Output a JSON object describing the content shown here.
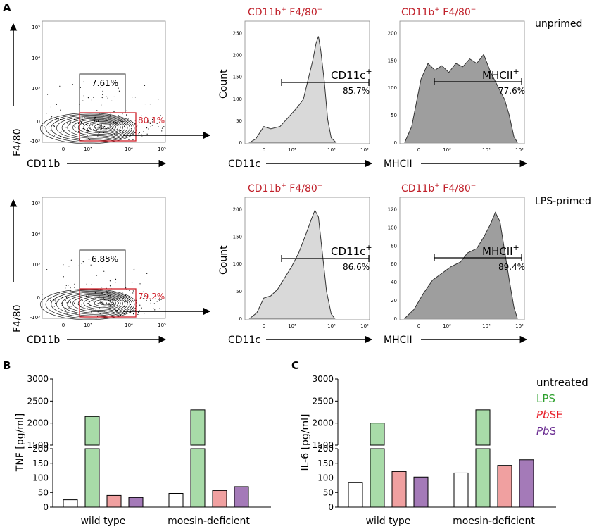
{
  "panel_labels": {
    "a": "A",
    "b": "B",
    "c": "C"
  },
  "rows": [
    {
      "condition": "unprimed",
      "dotplot": {
        "ylabel": "F4/80",
        "xlabel": "CD11b",
        "upper_gate_pct": "7.61%",
        "lower_gate_pct": "80.1%"
      },
      "hist_cd11c": {
        "title_main": "CD11b",
        "title_sup1": "+",
        "title_mid": " F4/80",
        "title_sup2": "−",
        "ylabel": "Count",
        "xlabel": "CD11c",
        "gate_name": "CD11c",
        "gate_sup": "+",
        "gate_pct": "85.7%",
        "y_ticks": [
          "0",
          "50",
          "100",
          "150",
          "200",
          "250"
        ]
      },
      "hist_mhcii": {
        "title_main": "CD11b",
        "title_sup1": "+",
        "title_mid": " F4/80",
        "title_sup2": "−",
        "xlabel": "MHCII",
        "gate_name": "MHCII",
        "gate_sup": "+",
        "gate_pct": "77.6%",
        "y_ticks": [
          "0",
          "50",
          "100",
          "150",
          "200"
        ]
      }
    },
    {
      "condition": "LPS-primed",
      "dotplot": {
        "ylabel": "F4/80",
        "xlabel": "CD11b",
        "upper_gate_pct": "6.85%",
        "lower_gate_pct": "79.2%"
      },
      "hist_cd11c": {
        "title_main": "CD11b",
        "title_sup1": "+",
        "title_mid": " F4/80",
        "title_sup2": "−",
        "ylabel": "Count",
        "xlabel": "CD11c",
        "gate_name": "CD11c",
        "gate_sup": "+",
        "gate_pct": "86.6%",
        "y_ticks": [
          "0",
          "50",
          "100",
          "150",
          "200"
        ]
      },
      "hist_mhcii": {
        "title_main": "CD11b",
        "title_sup1": "+",
        "title_mid": " F4/80",
        "title_sup2": "−",
        "xlabel": "MHCII",
        "gate_name": "MHCII",
        "gate_sup": "+",
        "gate_pct": "89.4%",
        "y_ticks": [
          "0",
          "20",
          "40",
          "60",
          "80",
          "100",
          "120"
        ]
      }
    }
  ],
  "flow_axis_ticks": {
    "dot_y": [
      "-10³",
      "0",
      "10³",
      "10⁴",
      "10⁵"
    ],
    "dot_x": [
      "0",
      "10³",
      "10⁴",
      "10⁵"
    ],
    "hist_x": [
      "0",
      "10³",
      "10⁴",
      "10⁵"
    ]
  },
  "legend": [
    {
      "prefix": "",
      "italic": "",
      "suffix": "untreated",
      "color": "#000000"
    },
    {
      "prefix": "",
      "italic": "",
      "suffix": "LPS",
      "color": "#2ca02c"
    },
    {
      "prefix": "",
      "italic": "Pb",
      "suffix": "SE",
      "color": "#e8202a"
    },
    {
      "prefix": "",
      "italic": "Pb",
      "suffix": "S",
      "color": "#6a2c91"
    }
  ],
  "chart_data": [
    {
      "type": "bar",
      "panel": "B",
      "title": "",
      "ylabel": "TNF [pg/ml]",
      "xlabel": "",
      "categories": [
        "wild type",
        "moesin-deficient"
      ],
      "series": [
        {
          "name": "untreated",
          "values": [
            25,
            47
          ],
          "color": "#ffffff"
        },
        {
          "name": "LPS",
          "values": [
            2150,
            2300
          ],
          "color": "#a8dba8"
        },
        {
          "name": "PbSE",
          "values": [
            40,
            57
          ],
          "color": "#f0a0a0"
        },
        {
          "name": "PbS",
          "values": [
            33,
            70
          ],
          "color": "#a47ab8"
        }
      ],
      "broken_axis": {
        "lower_range": [
          0,
          200
        ],
        "upper_range": [
          1500,
          3000
        ]
      },
      "lower_ticks": [
        "0",
        "50",
        "100",
        "150",
        "200"
      ],
      "upper_ticks": [
        "1500",
        "2000",
        "2500",
        "3000"
      ]
    },
    {
      "type": "bar",
      "panel": "C",
      "title": "",
      "ylabel": "IL-6 [pg/ml]",
      "xlabel": "",
      "categories": [
        "wild type",
        "moesin-deficient"
      ],
      "series": [
        {
          "name": "untreated",
          "values": [
            85,
            117
          ],
          "color": "#ffffff"
        },
        {
          "name": "LPS",
          "values": [
            2000,
            2300
          ],
          "color": "#a8dba8"
        },
        {
          "name": "PbSE",
          "values": [
            122,
            143
          ],
          "color": "#f0a0a0"
        },
        {
          "name": "PbS",
          "values": [
            103,
            162
          ],
          "color": "#a47ab8"
        }
      ],
      "broken_axis": {
        "lower_range": [
          0,
          200
        ],
        "upper_range": [
          1500,
          3000
        ]
      },
      "lower_ticks": [
        "0",
        "50",
        "100",
        "150",
        "200"
      ],
      "upper_ticks": [
        "1500",
        "2000",
        "2500",
        "3000"
      ]
    }
  ]
}
